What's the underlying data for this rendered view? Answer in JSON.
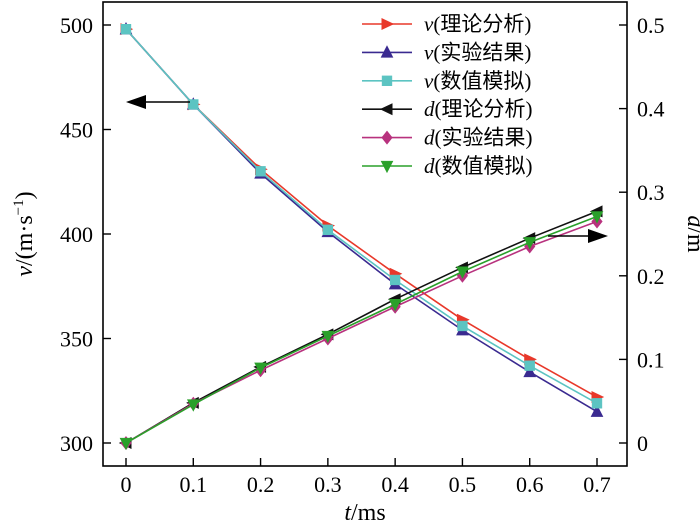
{
  "chart_data": {
    "type": "line",
    "x": [
      0,
      0.1,
      0.2,
      0.3,
      0.4,
      0.5,
      0.6,
      0.7
    ],
    "xlabel_var": "t",
    "xlabel_unit": "/ms",
    "ylabel_left_var": "v",
    "ylabel_left_unit": "/(m·s",
    "ylabel_left_exp": "−1",
    "ylabel_left_close": ")",
    "ylabel_right_var": "d",
    "ylabel_right_unit": "/m",
    "xlim": [
      0,
      0.7
    ],
    "ylim_left": [
      300,
      500
    ],
    "ylim_right": [
      0,
      0.5
    ],
    "x_ticks": [
      "0",
      "0.1",
      "0.2",
      "0.3",
      "0.4",
      "0.5",
      "0.6",
      "0.7"
    ],
    "y_left_ticks": [
      "300",
      "350",
      "400",
      "450",
      "500"
    ],
    "y_right_ticks": [
      "0",
      "0.1",
      "0.2",
      "0.3",
      "0.4",
      "0.5"
    ],
    "grid": false,
    "legend_position": "top-right",
    "series": [
      {
        "var": "v",
        "name": "(理论分析)",
        "axis": "left",
        "marker": "triangle-right",
        "color": "#e8382a",
        "values": [
          498,
          462,
          431,
          404,
          381,
          359,
          340,
          322
        ]
      },
      {
        "var": "v",
        "name": "(实验结果)",
        "axis": "left",
        "marker": "triangle-up",
        "color": "#3a2a90",
        "values": [
          498,
          462,
          429,
          401,
          376,
          354,
          334,
          315
        ]
      },
      {
        "var": "v",
        "name": "(数值模拟)",
        "axis": "left",
        "marker": "square",
        "color": "#5cc4c2",
        "values": [
          498,
          462,
          430,
          402,
          378,
          356,
          337,
          319
        ]
      },
      {
        "var": "d",
        "name": "(理论分析)",
        "axis": "right",
        "marker": "triangle-left",
        "color": "#111111",
        "values": [
          0,
          0.048,
          0.091,
          0.13,
          0.172,
          0.21,
          0.245,
          0.277
        ]
      },
      {
        "var": "d",
        "name": "(实验结果)",
        "axis": "right",
        "marker": "diamond",
        "color": "#b8327e",
        "values": [
          0,
          0.047,
          0.087,
          0.125,
          0.163,
          0.2,
          0.235,
          0.265
        ]
      },
      {
        "var": "d",
        "name": "(数值模拟)",
        "axis": "right",
        "marker": "triangle-down",
        "color": "#2aa02a",
        "values": [
          0,
          0.046,
          0.09,
          0.128,
          0.166,
          0.205,
          0.24,
          0.271
        ]
      }
    ]
  }
}
